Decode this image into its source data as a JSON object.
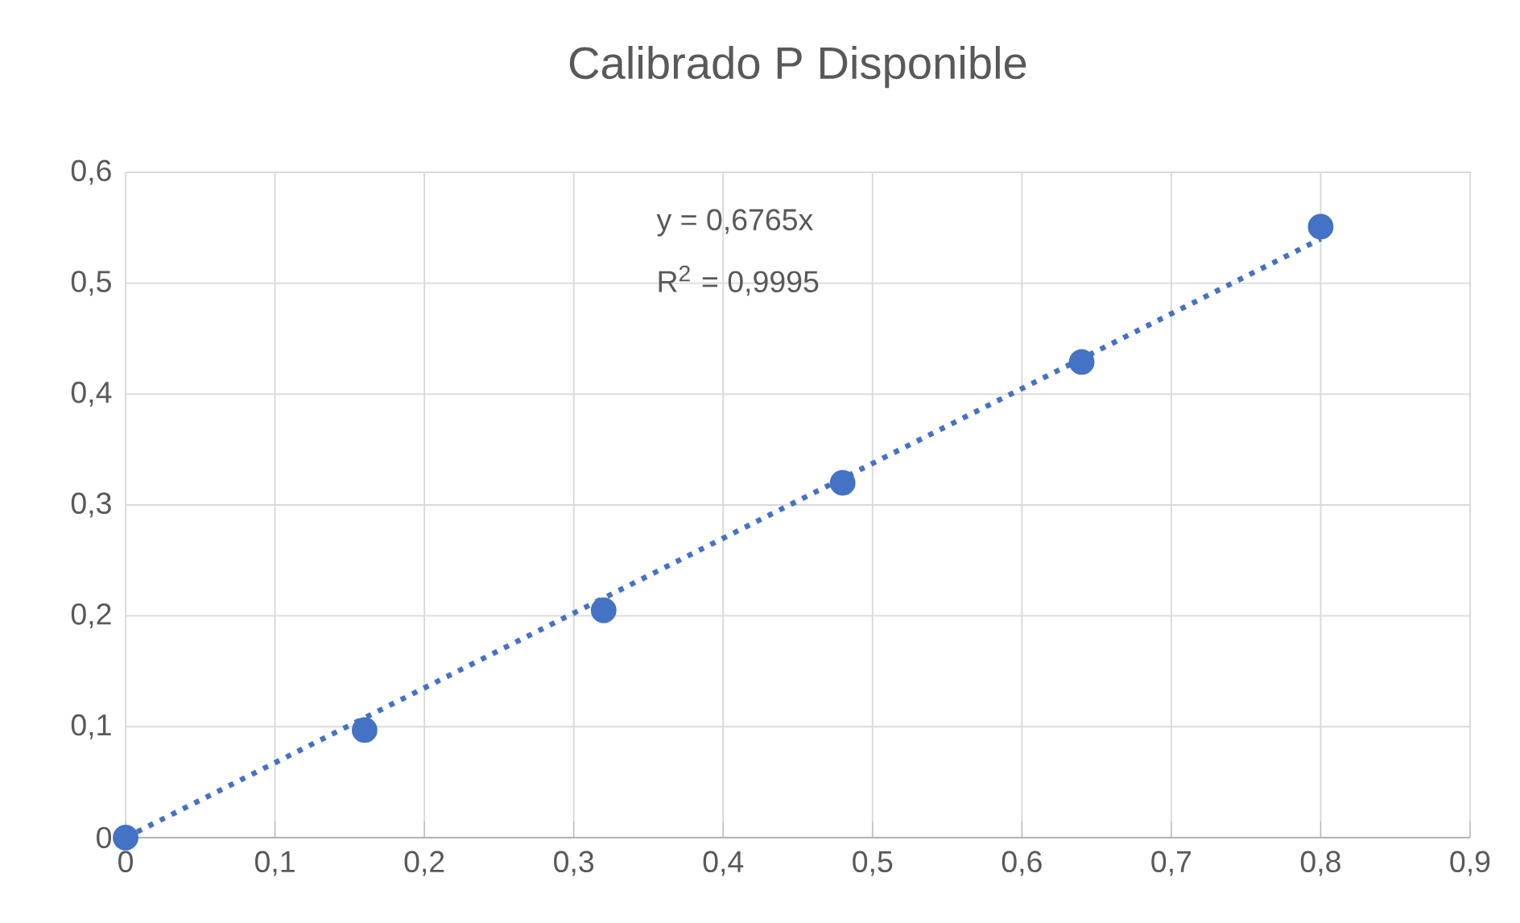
{
  "chart_data": {
    "type": "scatter",
    "title": "Calibrado P Disponible",
    "x": [
      0,
      0.16,
      0.32,
      0.48,
      0.64,
      0.8
    ],
    "series": [
      {
        "color": "#4472c4",
        "marker": "circle",
        "values": [
          0,
          0.097,
          0.205,
          0.32,
          0.429,
          0.551
        ]
      },
      {
        "type": "line",
        "color": "#4472c4",
        "line_style": "dotted",
        "marker": "none",
        "x": [
          0,
          0.8
        ],
        "values": [
          0,
          0.54
        ]
      }
    ],
    "annotations": [
      "y = 0,6765x",
      "R$^{2}$ = 0,9995"
    ],
    "xlim": [
      0,
      0.9
    ],
    "ylim": [
      0,
      0.6
    ],
    "xticks": [
      0,
      {
        "value": 0.1,
        "label": "0,1"
      },
      {
        "value": 0.2,
        "label": "0,2"
      },
      {
        "value": 0.3,
        "label": "0,3"
      },
      {
        "value": 0.4,
        "label": "0,4"
      },
      {
        "value": 0.5,
        "label": "0,5"
      },
      {
        "value": 0.6,
        "label": "0,6"
      },
      {
        "value": 0.7,
        "label": "0,7"
      },
      {
        "value": 0.8,
        "label": "0,8"
      },
      {
        "value": 0.9,
        "label": "0,9"
      }
    ],
    "yticks": [
      0,
      {
        "value": 0.1,
        "label": "0,1"
      },
      {
        "value": 0.2,
        "label": "0,2"
      },
      {
        "value": 0.3,
        "label": "0,3"
      },
      {
        "value": 0.4,
        "label": "0,4"
      },
      {
        "value": 0.5,
        "label": "0,5"
      },
      {
        "value": 0.6,
        "label": "0,6"
      }
    ],
    "grid": true
  }
}
